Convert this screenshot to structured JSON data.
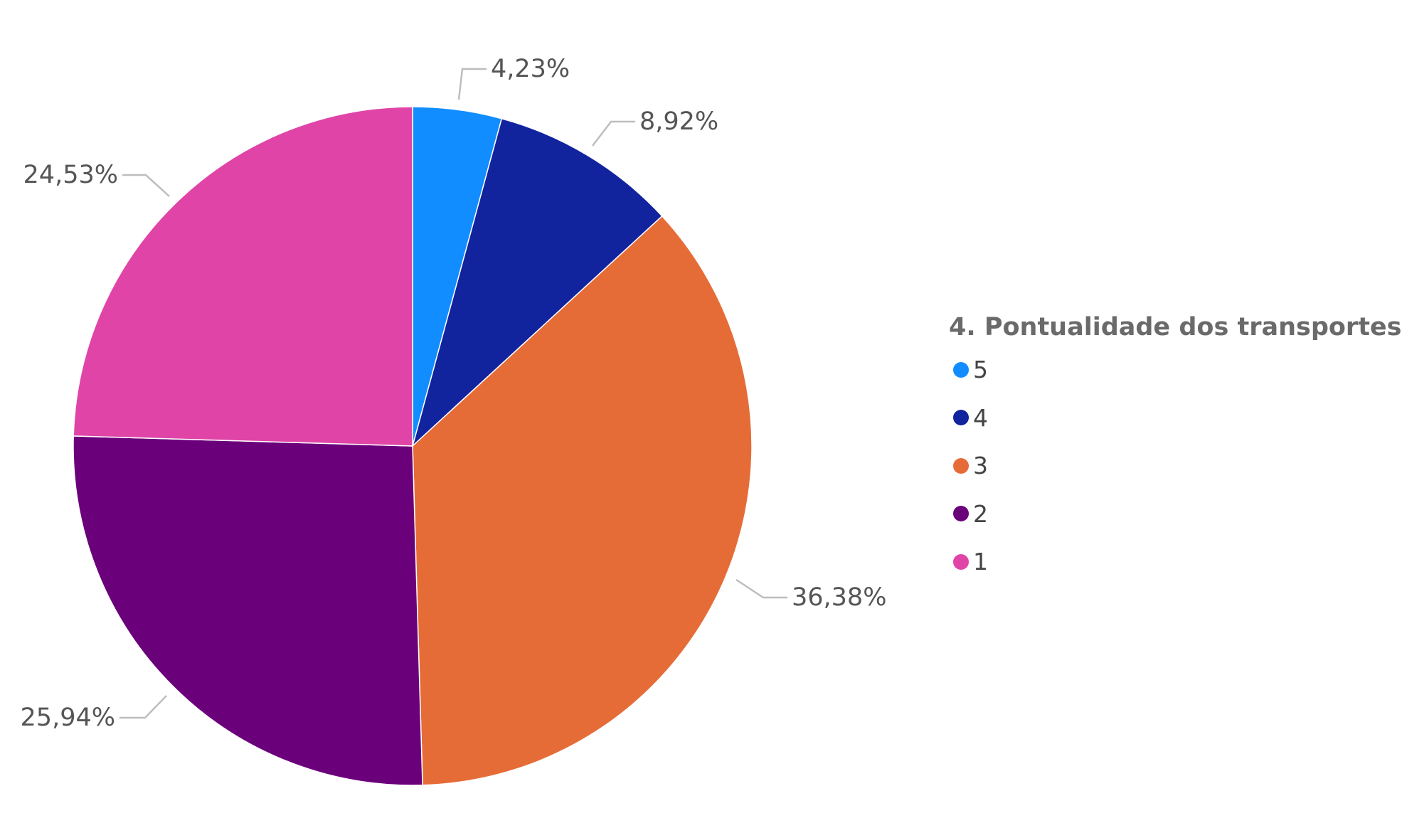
{
  "chart_data": {
    "type": "pie",
    "legend_title": "4. Pontualidade dos transportes",
    "legend_position": "right",
    "slices": [
      {
        "label": "5",
        "value": 4.23,
        "display": "4,23%",
        "color": "#118DFF"
      },
      {
        "label": "4",
        "value": 8.92,
        "display": "8,92%",
        "color": "#12239E"
      },
      {
        "label": "3",
        "value": 36.38,
        "display": "36,38%",
        "color": "#E66C37"
      },
      {
        "label": "2",
        "value": 25.94,
        "display": "25,94%",
        "color": "#6B007B"
      },
      {
        "label": "1",
        "value": 24.53,
        "display": "24,53%",
        "color": "#E044A7"
      }
    ]
  }
}
